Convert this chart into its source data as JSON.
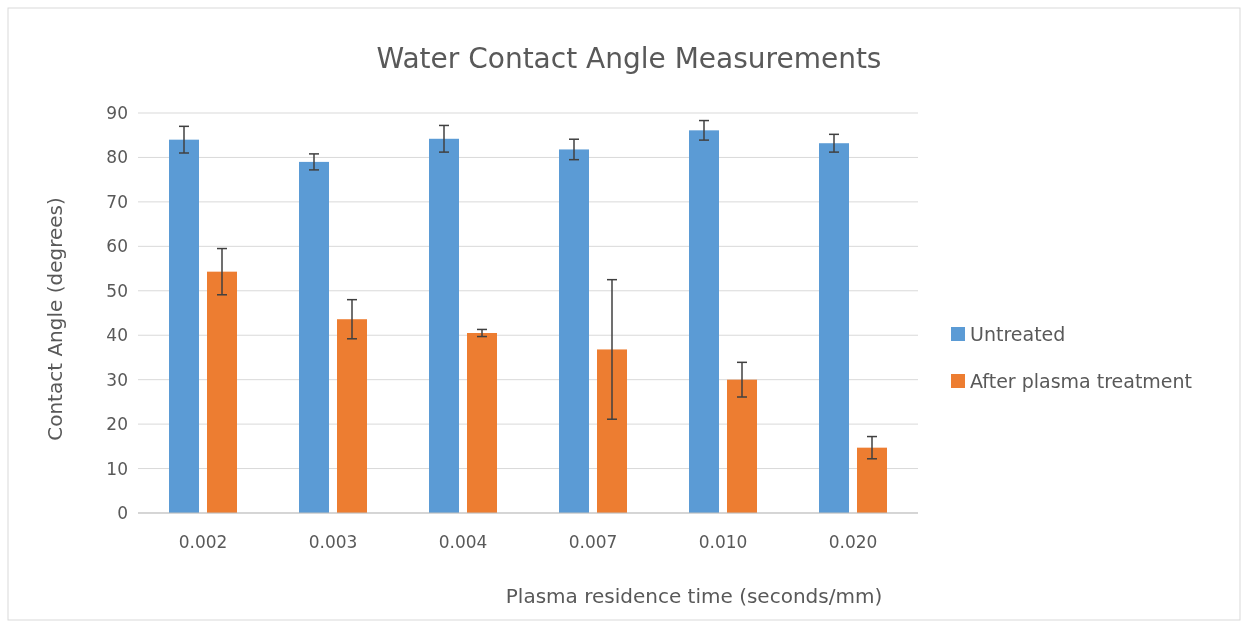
{
  "chart_data": {
    "type": "bar",
    "title": "Water Contact Angle Measurements",
    "xlabel": "Plasma residence time (seconds/mm)",
    "ylabel": "Contact Angle (degrees)",
    "categories": [
      "0.002",
      "0.003",
      "0.004",
      "0.007",
      "0.010",
      "0.020"
    ],
    "series": [
      {
        "name": "Untreated",
        "color": "#5b9bd5",
        "values": [
          84,
          79,
          84.2,
          81.8,
          86.1,
          83.2
        ],
        "errors": [
          3,
          1.8,
          3,
          2.3,
          2.2,
          2
        ]
      },
      {
        "name": "After plasma treatment",
        "color": "#ed7d31",
        "values": [
          54.3,
          43.6,
          40.5,
          36.8,
          30,
          14.7
        ],
        "errors": [
          5.2,
          4.4,
          0.8,
          15.7,
          3.9,
          2.5
        ]
      }
    ],
    "ylim": [
      0,
      90
    ],
    "yticks": [
      0,
      10,
      20,
      30,
      40,
      50,
      60,
      70,
      80,
      90
    ],
    "grid": "y",
    "legend": "right"
  }
}
